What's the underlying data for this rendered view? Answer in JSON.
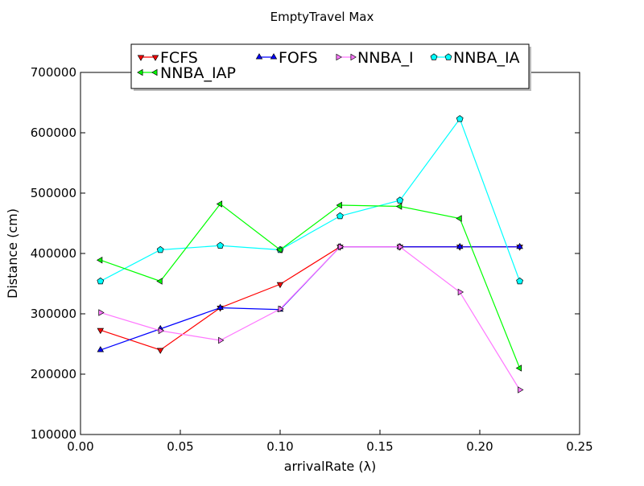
{
  "chart_data": {
    "type": "line",
    "title": "EmptyTravel Max",
    "xlabel": "arrivalRate (λ)",
    "ylabel": "Distance (cm)",
    "xlim": [
      0.0,
      0.25
    ],
    "ylim": [
      100000,
      700000
    ],
    "xticks": [
      0.0,
      0.05,
      0.1,
      0.15,
      0.2,
      0.25
    ],
    "xtick_labels": [
      "0.00",
      "0.05",
      "0.10",
      "0.15",
      "0.20",
      "0.25"
    ],
    "yticks": [
      100000,
      200000,
      300000,
      400000,
      500000,
      600000,
      700000
    ],
    "ytick_labels": [
      "100000",
      "200000",
      "300000",
      "400000",
      "500000",
      "600000",
      "700000"
    ],
    "grid": false,
    "legend_position": "top-center",
    "x": [
      0.01,
      0.04,
      0.07,
      0.1,
      0.13,
      0.16,
      0.19,
      0.22
    ],
    "series": [
      {
        "name": "FCFS",
        "color": "#ff0000",
        "marker": "triangle-down",
        "values": [
          273000,
          240000,
          310000,
          349000,
          411000,
          411000,
          411000,
          411000
        ]
      },
      {
        "name": "FOFS",
        "color": "#0000ff",
        "marker": "triangle-up",
        "values": [
          240000,
          275000,
          310000,
          307000,
          411000,
          411000,
          411000,
          411000
        ]
      },
      {
        "name": "NNBA_I",
        "color": "#ff77ff",
        "marker": "triangle-right",
        "values": [
          302000,
          272000,
          256000,
          308000,
          411000,
          411000,
          336000,
          174000
        ]
      },
      {
        "name": "NNBA_IA",
        "color": "#00ffff",
        "marker": "pentagon",
        "values": [
          354000,
          406000,
          413000,
          406000,
          462000,
          488000,
          623000,
          354000
        ]
      },
      {
        "name": "NNBA_IAP",
        "color": "#00ff00",
        "marker": "triangle-left",
        "values": [
          389000,
          354000,
          482000,
          406000,
          480000,
          478000,
          458000,
          210000
        ]
      }
    ],
    "legend_order": [
      0,
      1,
      2,
      3,
      4
    ]
  }
}
